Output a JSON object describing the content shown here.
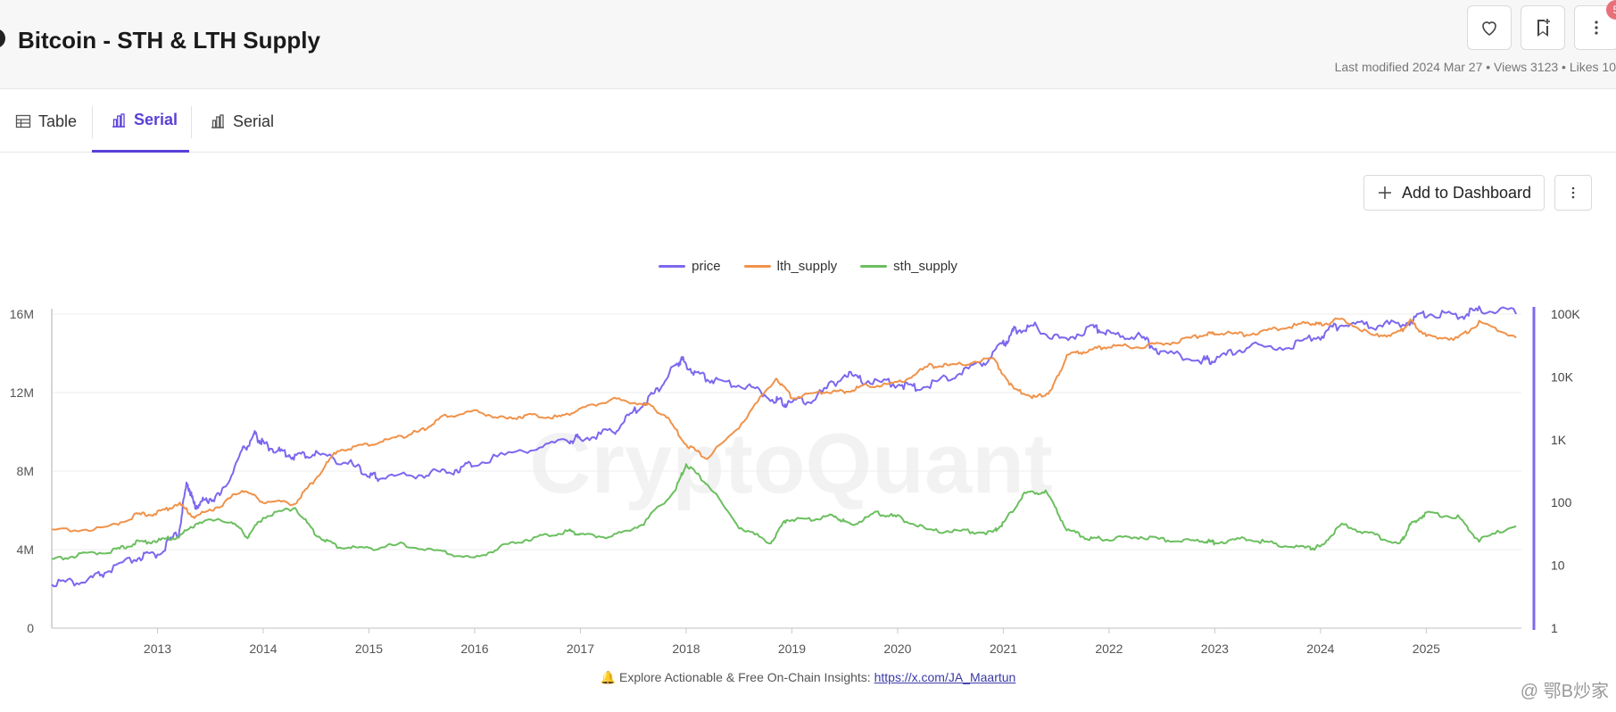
{
  "header": {
    "title": "Bitcoin - STH & LTH Supply",
    "meta": "Last modified 2024 Mar 27 • Views 3123 • Likes 10",
    "badge": "5"
  },
  "tabs": [
    {
      "label": "Table",
      "icon": "table-icon"
    },
    {
      "label": "Serial",
      "icon": "bar-chart-icon",
      "active": true
    },
    {
      "label": "Serial",
      "icon": "bar-chart-icon"
    }
  ],
  "actions": {
    "add_dashboard": "Add to Dashboard"
  },
  "colors": {
    "price": "#7b68ee",
    "lth_supply": "#f0924a",
    "sth_supply": "#6bbf5f",
    "accent": "#5b3fd9"
  },
  "chart_data": {
    "type": "line",
    "legend": "top-center",
    "watermark": "CryptoQuant",
    "x_ticks": [
      "2013",
      "2014",
      "2015",
      "2016",
      "2017",
      "2018",
      "2019",
      "2020",
      "2021",
      "2022",
      "2023",
      "2024",
      "2025"
    ],
    "x_range": [
      2012.0,
      2025.9
    ],
    "y_left": {
      "ticks": [
        "0",
        "4M",
        "8M",
        "12M",
        "16M"
      ],
      "range": [
        0,
        16000000
      ]
    },
    "y_right": {
      "ticks": [
        "1",
        "10",
        "100",
        "1K",
        "10K",
        "100K"
      ],
      "scale": "log",
      "range": [
        1,
        100000
      ]
    },
    "series": [
      {
        "name": "price",
        "axis": "right",
        "x": [
          2012.0,
          2012.3,
          2012.5,
          2012.8,
          2013.0,
          2013.2,
          2013.28,
          2013.35,
          2013.45,
          2013.6,
          2013.8,
          2013.92,
          2014.0,
          2014.15,
          2014.3,
          2014.5,
          2014.8,
          2015.0,
          2015.1,
          2015.5,
          2015.8,
          2016.0,
          2016.5,
          2016.9,
          2017.0,
          2017.3,
          2017.5,
          2017.7,
          2017.9,
          2017.96,
          2018.1,
          2018.3,
          2018.6,
          2018.85,
          2018.95,
          2019.2,
          2019.5,
          2019.7,
          2020.0,
          2020.2,
          2020.5,
          2020.8,
          2021.0,
          2021.1,
          2021.3,
          2021.55,
          2021.85,
          2022.0,
          2022.3,
          2022.5,
          2022.9,
          2023.0,
          2023.3,
          2023.7,
          2024.0,
          2024.2,
          2024.5,
          2024.8,
          2025.0,
          2025.3,
          2025.5,
          2025.85
        ],
        "values": [
          5,
          5,
          7,
          12,
          14,
          30,
          200,
          80,
          100,
          120,
          600,
          1100,
          800,
          600,
          500,
          550,
          400,
          250,
          230,
          260,
          300,
          400,
          650,
          900,
          1000,
          1200,
          2500,
          5000,
          14000,
          17000,
          10000,
          8000,
          6500,
          4000,
          3500,
          4000,
          10000,
          8000,
          7200,
          6000,
          9500,
          15000,
          30000,
          50000,
          58000,
          35000,
          57000,
          45000,
          40000,
          22000,
          17000,
          17000,
          28000,
          27000,
          42000,
          65000,
          60000,
          65000,
          95000,
          85000,
          105000,
          100000
        ]
      },
      {
        "name": "lth_supply",
        "axis": "left",
        "x": [
          2012.0,
          2012.5,
          2012.8,
          2013.0,
          2013.2,
          2013.35,
          2013.6,
          2013.8,
          2014.0,
          2014.3,
          2014.5,
          2014.7,
          2015.0,
          2015.3,
          2015.5,
          2015.7,
          2016.0,
          2016.3,
          2016.5,
          2016.8,
          2017.0,
          2017.3,
          2017.6,
          2017.8,
          2018.0,
          2018.2,
          2018.5,
          2018.85,
          2019.0,
          2019.3,
          2019.5,
          2019.7,
          2020.0,
          2020.3,
          2020.5,
          2020.9,
          2021.1,
          2021.3,
          2021.45,
          2021.6,
          2021.8,
          2022.0,
          2022.3,
          2022.6,
          2022.9,
          2023.0,
          2023.3,
          2023.6,
          2023.9,
          2024.0,
          2024.2,
          2024.5,
          2024.75,
          2024.85,
          2025.0,
          2025.3,
          2025.5,
          2025.85
        ],
        "values": [
          4900000,
          5000000,
          5700000,
          5800000,
          6300000,
          5600000,
          6200000,
          7000000,
          6400000,
          6300000,
          7600000,
          9000000,
          9300000,
          9700000,
          10000000,
          10700000,
          11000000,
          10600000,
          10800000,
          10700000,
          11100000,
          11600000,
          11400000,
          10800000,
          9300000,
          8600000,
          10200000,
          12700000,
          11700000,
          12000000,
          12000000,
          12300000,
          12400000,
          13300000,
          13300000,
          13700000,
          12100000,
          11700000,
          12000000,
          13800000,
          14100000,
          14300000,
          14300000,
          14500000,
          14900000,
          15000000,
          14900000,
          15200000,
          15500000,
          15400000,
          15700000,
          14800000,
          15000000,
          15600000,
          14800000,
          14700000,
          15500000,
          14800000
        ]
      },
      {
        "name": "sth_supply",
        "axis": "left",
        "x": [
          2012.0,
          2012.3,
          2012.6,
          2012.8,
          2013.0,
          2013.2,
          2013.4,
          2013.7,
          2013.85,
          2014.0,
          2014.3,
          2014.5,
          2014.7,
          2015.0,
          2015.3,
          2015.7,
          2016.0,
          2016.3,
          2016.6,
          2016.9,
          2017.0,
          2017.3,
          2017.6,
          2017.9,
          2018.0,
          2018.2,
          2018.5,
          2018.8,
          2018.95,
          2019.2,
          2019.4,
          2019.55,
          2019.8,
          2020.0,
          2020.3,
          2020.6,
          2020.9,
          2021.0,
          2021.2,
          2021.4,
          2021.6,
          2021.8,
          2022.0,
          2022.3,
          2022.6,
          2022.9,
          2023.0,
          2023.3,
          2023.6,
          2023.9,
          2024.0,
          2024.2,
          2024.5,
          2024.75,
          2024.85,
          2025.0,
          2025.3,
          2025.5,
          2025.85
        ],
        "values": [
          3400000,
          3700000,
          3900000,
          4300000,
          4400000,
          4600000,
          5400000,
          5400000,
          4600000,
          5600000,
          6100000,
          4700000,
          4100000,
          4000000,
          4200000,
          3800000,
          3500000,
          4200000,
          4600000,
          4900000,
          4700000,
          4600000,
          5300000,
          7000000,
          8300000,
          7300000,
          5100000,
          4300000,
          5500000,
          5500000,
          5700000,
          5200000,
          5800000,
          5600000,
          4900000,
          4900000,
          4800000,
          5300000,
          6800000,
          6900000,
          5000000,
          4500000,
          4500000,
          4600000,
          4400000,
          4400000,
          4300000,
          4500000,
          4200000,
          4000000,
          4100000,
          5200000,
          4700000,
          4200000,
          5200000,
          5800000,
          5600000,
          4400000,
          5200000
        ]
      }
    ]
  },
  "footer": {
    "text": "🔔 Explore Actionable & Free On-Chain Insights:",
    "link": "https://x.com/JA_Maartun"
  },
  "corner_watermark": "@ 鄂B炒家"
}
